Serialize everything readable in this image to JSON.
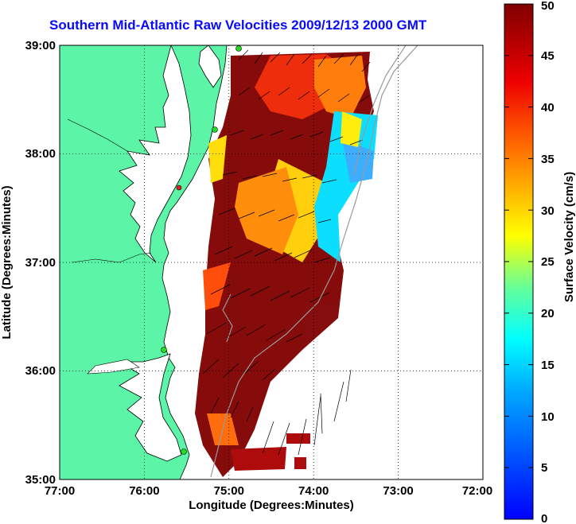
{
  "title": "Southern Mid-Atlantic Raw Velocities 2009/12/13 2000 GMT",
  "xlabel": "Longitude (Degrees:Minutes)",
  "ylabel": "Latitude (Degrees:Minutes)",
  "colorbar_label": "Surface Velocity (cm/s)",
  "x_ticks": [
    "77:00",
    "76:00",
    "75:00",
    "74:00",
    "73:00",
    "72:00"
  ],
  "y_ticks": [
    "39:00",
    "38:00",
    "37:00",
    "36:00",
    "35:00"
  ],
  "colorbar_ticks": [
    "50",
    "45",
    "40",
    "35",
    "30",
    "25",
    "20",
    "15",
    "10",
    "5",
    "0"
  ],
  "colors": {
    "land": "#5cf5a8",
    "title": "#0a0aff",
    "station": "#22dd22",
    "station_alt": "#dd2222"
  },
  "chart_data": {
    "type": "map",
    "xlim_lon": [
      -77,
      -72
    ],
    "ylim_lat": [
      35,
      39
    ],
    "colorbar_range": [
      0,
      50
    ],
    "grid": true
  }
}
